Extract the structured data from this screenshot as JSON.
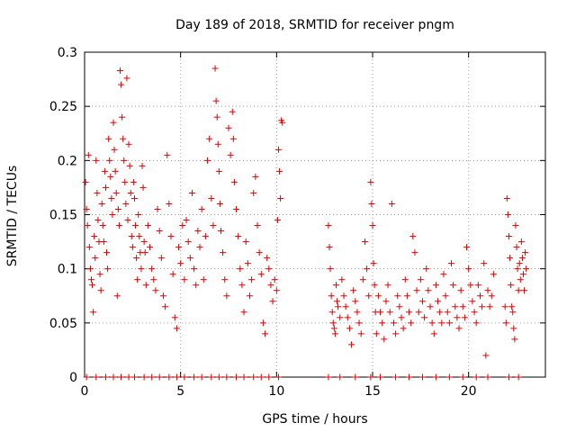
{
  "chart_data": {
    "type": "scatter",
    "title": "Day 189 of 2018, SRMTID for receiver pngm",
    "xlabel": "GPS time / hours",
    "ylabel": "SRMTID / TECUs",
    "xlim": [
      0,
      24
    ],
    "ylim": [
      0,
      0.3
    ],
    "xticks": [
      0,
      5,
      10,
      15,
      20
    ],
    "xtick_labels": [
      "0",
      "5",
      "10",
      "15",
      "20"
    ],
    "yticks": [
      0,
      0.05,
      0.1,
      0.15,
      0.2,
      0.25,
      0.3
    ],
    "ytick_labels": [
      "0",
      "0.05",
      "0.1",
      "0.15",
      "0.2",
      "0.25",
      "0.3"
    ],
    "grid": true,
    "marker": "plus",
    "color": "#e00000",
    "series": [
      {
        "name": "SRMTID",
        "points": [
          [
            0.05,
            0.18
          ],
          [
            0.1,
            0.155
          ],
          [
            0.15,
            0.14
          ],
          [
            0.2,
            0.205
          ],
          [
            0.25,
            0.12
          ],
          [
            0.3,
            0.1
          ],
          [
            0.35,
            0.09
          ],
          [
            0.4,
            0.085
          ],
          [
            0.45,
            0.06
          ],
          [
            0.5,
            0.13
          ],
          [
            0.55,
            0.11
          ],
          [
            0.6,
            0.2
          ],
          [
            0.65,
            0.17
          ],
          [
            0.7,
            0.145
          ],
          [
            0.75,
            0.125
          ],
          [
            0.8,
            0.095
          ],
          [
            0.85,
            0.08
          ],
          [
            0.9,
            0.16
          ],
          [
            0.95,
            0.14
          ],
          [
            1.0,
            0.125
          ],
          [
            1.05,
            0.19
          ],
          [
            1.1,
            0.175
          ],
          [
            1.15,
            0.115
          ],
          [
            1.2,
            0.1
          ],
          [
            1.25,
            0.22
          ],
          [
            1.3,
            0.2
          ],
          [
            1.35,
            0.185
          ],
          [
            1.4,
            0.165
          ],
          [
            1.45,
            0.15
          ],
          [
            1.5,
            0.235
          ],
          [
            1.55,
            0.21
          ],
          [
            1.6,
            0.19
          ],
          [
            1.65,
            0.17
          ],
          [
            1.7,
            0.075
          ],
          [
            1.75,
            0.155
          ],
          [
            1.8,
            0.14
          ],
          [
            1.85,
            0.283
          ],
          [
            1.9,
            0.27
          ],
          [
            1.95,
            0.24
          ],
          [
            2.0,
            0.22
          ],
          [
            2.05,
            0.2
          ],
          [
            2.1,
            0.18
          ],
          [
            2.15,
            0.16
          ],
          [
            2.2,
            0.276
          ],
          [
            2.25,
            0.145
          ],
          [
            2.3,
            0.215
          ],
          [
            2.35,
            0.195
          ],
          [
            2.4,
            0.17
          ],
          [
            2.45,
            0.13
          ],
          [
            2.5,
            0.12
          ],
          [
            2.55,
            0.18
          ],
          [
            2.6,
            0.165
          ],
          [
            2.65,
            0.14
          ],
          [
            2.7,
            0.11
          ],
          [
            2.75,
            0.09
          ],
          [
            2.8,
            0.15
          ],
          [
            2.85,
            0.13
          ],
          [
            2.9,
            0.115
          ],
          [
            2.95,
            0.1
          ],
          [
            3.0,
            0.195
          ],
          [
            3.05,
            0.175
          ],
          [
            3.1,
            0.125
          ],
          [
            3.15,
            0.115
          ],
          [
            3.2,
            0.085
          ],
          [
            3.3,
            0.14
          ],
          [
            3.4,
            0.12
          ],
          [
            3.5,
            0.1
          ],
          [
            3.6,
            0.09
          ],
          [
            3.7,
            0.08
          ],
          [
            3.8,
            0.155
          ],
          [
            3.9,
            0.135
          ],
          [
            4.0,
            0.11
          ],
          [
            4.1,
            0.075
          ],
          [
            4.2,
            0.065
          ],
          [
            4.3,
            0.205
          ],
          [
            4.4,
            0.16
          ],
          [
            4.5,
            0.13
          ],
          [
            4.6,
            0.095
          ],
          [
            4.7,
            0.055
          ],
          [
            4.8,
            0.045
          ],
          [
            4.9,
            0.12
          ],
          [
            5.0,
            0.105
          ],
          [
            5.1,
            0.14
          ],
          [
            5.2,
            0.09
          ],
          [
            5.3,
            0.145
          ],
          [
            5.4,
            0.125
          ],
          [
            5.5,
            0.11
          ],
          [
            5.6,
            0.17
          ],
          [
            5.7,
            0.1
          ],
          [
            5.8,
            0.085
          ],
          [
            5.9,
            0.135
          ],
          [
            6.0,
            0.12
          ],
          [
            6.1,
            0.155
          ],
          [
            6.2,
            0.09
          ],
          [
            6.3,
            0.13
          ],
          [
            6.4,
            0.2
          ],
          [
            6.5,
            0.22
          ],
          [
            6.6,
            0.165
          ],
          [
            6.7,
            0.14
          ],
          [
            6.8,
            0.285
          ],
          [
            6.85,
            0.255
          ],
          [
            6.9,
            0.24
          ],
          [
            6.95,
            0.215
          ],
          [
            7.0,
            0.19
          ],
          [
            7.05,
            0.16
          ],
          [
            7.1,
            0.135
          ],
          [
            7.2,
            0.115
          ],
          [
            7.3,
            0.09
          ],
          [
            7.4,
            0.075
          ],
          [
            7.5,
            0.23
          ],
          [
            7.6,
            0.205
          ],
          [
            7.7,
            0.245
          ],
          [
            7.75,
            0.22
          ],
          [
            7.8,
            0.18
          ],
          [
            7.9,
            0.155
          ],
          [
            8.0,
            0.13
          ],
          [
            8.1,
            0.1
          ],
          [
            8.2,
            0.085
          ],
          [
            8.3,
            0.06
          ],
          [
            8.4,
            0.125
          ],
          [
            8.5,
            0.105
          ],
          [
            8.6,
            0.075
          ],
          [
            8.7,
            0.09
          ],
          [
            8.8,
            0.17
          ],
          [
            8.9,
            0.185
          ],
          [
            9.0,
            0.14
          ],
          [
            9.1,
            0.115
          ],
          [
            9.2,
            0.095
          ],
          [
            9.3,
            0.05
          ],
          [
            9.4,
            0.04
          ],
          [
            9.5,
            0.11
          ],
          [
            9.6,
            0.1
          ],
          [
            9.7,
            0.085
          ],
          [
            9.8,
            0.07
          ],
          [
            9.9,
            0.09
          ],
          [
            10.0,
            0.08
          ],
          [
            10.05,
            0.145
          ],
          [
            10.1,
            0.21
          ],
          [
            10.15,
            0.19
          ],
          [
            10.2,
            0.165
          ],
          [
            10.25,
            0.237
          ],
          [
            10.3,
            0.235
          ],
          [
            12.7,
            0.14
          ],
          [
            12.75,
            0.12
          ],
          [
            12.8,
            0.1
          ],
          [
            12.85,
            0.075
          ],
          [
            12.9,
            0.06
          ],
          [
            12.95,
            0.05
          ],
          [
            13.0,
            0.045
          ],
          [
            13.05,
            0.04
          ],
          [
            13.1,
            0.085
          ],
          [
            13.15,
            0.07
          ],
          [
            13.2,
            0.065
          ],
          [
            13.3,
            0.055
          ],
          [
            13.4,
            0.09
          ],
          [
            13.5,
            0.075
          ],
          [
            13.6,
            0.065
          ],
          [
            13.7,
            0.055
          ],
          [
            13.8,
            0.045
          ],
          [
            13.9,
            0.03
          ],
          [
            14.0,
            0.08
          ],
          [
            14.1,
            0.07
          ],
          [
            14.2,
            0.06
          ],
          [
            14.3,
            0.05
          ],
          [
            14.4,
            0.04
          ],
          [
            14.5,
            0.09
          ],
          [
            14.6,
            0.125
          ],
          [
            14.7,
            0.1
          ],
          [
            14.8,
            0.075
          ],
          [
            14.9,
            0.18
          ],
          [
            14.95,
            0.16
          ],
          [
            15.0,
            0.14
          ],
          [
            15.05,
            0.105
          ],
          [
            15.1,
            0.085
          ],
          [
            15.15,
            0.06
          ],
          [
            15.2,
            0.04
          ],
          [
            15.3,
            0.075
          ],
          [
            15.4,
            0.06
          ],
          [
            15.5,
            0.05
          ],
          [
            15.6,
            0.035
          ],
          [
            15.7,
            0.07
          ],
          [
            15.8,
            0.085
          ],
          [
            15.9,
            0.06
          ],
          [
            16.0,
            0.16
          ],
          [
            16.1,
            0.05
          ],
          [
            16.2,
            0.04
          ],
          [
            16.3,
            0.075
          ],
          [
            16.4,
            0.065
          ],
          [
            16.5,
            0.055
          ],
          [
            16.6,
            0.045
          ],
          [
            16.7,
            0.09
          ],
          [
            16.8,
            0.075
          ],
          [
            16.9,
            0.06
          ],
          [
            17.0,
            0.05
          ],
          [
            17.1,
            0.13
          ],
          [
            17.2,
            0.115
          ],
          [
            17.3,
            0.08
          ],
          [
            17.4,
            0.06
          ],
          [
            17.5,
            0.09
          ],
          [
            17.6,
            0.07
          ],
          [
            17.7,
            0.055
          ],
          [
            17.8,
            0.1
          ],
          [
            17.9,
            0.08
          ],
          [
            18.0,
            0.065
          ],
          [
            18.1,
            0.05
          ],
          [
            18.2,
            0.04
          ],
          [
            18.3,
            0.085
          ],
          [
            18.4,
            0.07
          ],
          [
            18.5,
            0.06
          ],
          [
            18.6,
            0.05
          ],
          [
            18.7,
            0.095
          ],
          [
            18.8,
            0.075
          ],
          [
            18.9,
            0.06
          ],
          [
            19.0,
            0.05
          ],
          [
            19.1,
            0.105
          ],
          [
            19.2,
            0.085
          ],
          [
            19.3,
            0.065
          ],
          [
            19.4,
            0.055
          ],
          [
            19.5,
            0.045
          ],
          [
            19.6,
            0.08
          ],
          [
            19.7,
            0.065
          ],
          [
            19.8,
            0.055
          ],
          [
            19.9,
            0.12
          ],
          [
            20.0,
            0.1
          ],
          [
            20.1,
            0.085
          ],
          [
            20.2,
            0.07
          ],
          [
            20.3,
            0.06
          ],
          [
            20.4,
            0.05
          ],
          [
            20.5,
            0.085
          ],
          [
            20.6,
            0.075
          ],
          [
            20.7,
            0.065
          ],
          [
            20.8,
            0.105
          ],
          [
            20.9,
            0.02
          ],
          [
            21.0,
            0.08
          ],
          [
            21.1,
            0.065
          ],
          [
            21.2,
            0.075
          ],
          [
            21.3,
            0.095
          ],
          [
            21.9,
            0.065
          ],
          [
            21.95,
            0.05
          ],
          [
            22.0,
            0.165
          ],
          [
            22.05,
            0.15
          ],
          [
            22.1,
            0.13
          ],
          [
            22.15,
            0.11
          ],
          [
            22.2,
            0.085
          ],
          [
            22.25,
            0.065
          ],
          [
            22.3,
            0.06
          ],
          [
            22.35,
            0.045
          ],
          [
            22.4,
            0.035
          ],
          [
            22.45,
            0.14
          ],
          [
            22.5,
            0.12
          ],
          [
            22.55,
            0.1
          ],
          [
            22.6,
            0.08
          ],
          [
            22.65,
            0.105
          ],
          [
            22.7,
            0.09
          ],
          [
            22.75,
            0.125
          ],
          [
            22.8,
            0.11
          ],
          [
            22.85,
            0.095
          ],
          [
            22.9,
            0.08
          ],
          [
            22.95,
            0.115
          ],
          [
            23.0,
            0.1
          ]
        ]
      }
    ],
    "zero_points_x": [
      0.1,
      0.6,
      1.1,
      1.5,
      1.9,
      2.3,
      2.6,
      3.1,
      3.5,
      3.9,
      4.4,
      4.8,
      5.2,
      5.7,
      6.1,
      6.6,
      7.0,
      7.4,
      7.9,
      8.3,
      8.8,
      9.2,
      9.6,
      10.1,
      12.7,
      13.3,
      14.1,
      14.9,
      15.4,
      16.2,
      16.9,
      17.6,
      18.3,
      19.0,
      19.7,
      20.4,
      21.0,
      22.1,
      22.6
    ]
  }
}
